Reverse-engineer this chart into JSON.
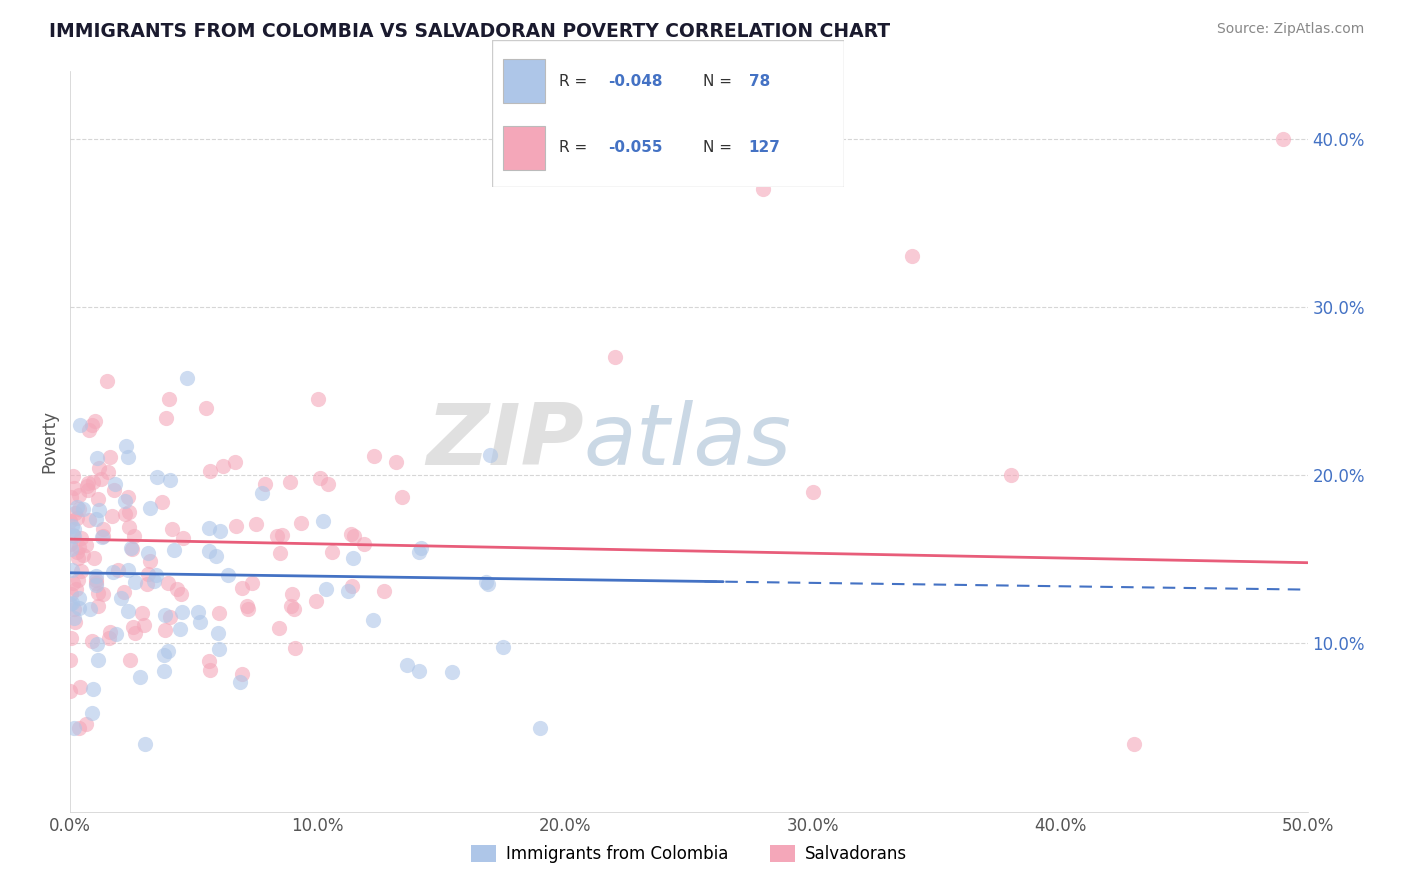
{
  "title": "IMMIGRANTS FROM COLOMBIA VS SALVADORAN POVERTY CORRELATION CHART",
  "source": "Source: ZipAtlas.com",
  "ylabel": "Poverty",
  "legend_label_1": "Immigrants from Colombia",
  "legend_label_2": "Salvadorans",
  "r1": -0.048,
  "n1": 78,
  "r2": -0.055,
  "n2": 127,
  "xlim": [
    0.0,
    0.5
  ],
  "ylim": [
    0.0,
    0.44
  ],
  "color_blue": "#aec6e8",
  "color_pink": "#f4a7b9",
  "line_blue": "#4472c4",
  "line_pink": "#e85d7a",
  "watermark_zip": "ZIP",
  "watermark_atlas": "atlas",
  "xtick_labels": [
    "0.0%",
    "10.0%",
    "20.0%",
    "30.0%",
    "40.0%",
    "50.0%"
  ],
  "xtick_vals": [
    0.0,
    0.1,
    0.2,
    0.3,
    0.4,
    0.5
  ],
  "ytick_labels": [
    "10.0%",
    "20.0%",
    "30.0%",
    "40.0%"
  ],
  "ytick_vals": [
    0.1,
    0.2,
    0.3,
    0.4
  ],
  "pink_line_start_y": 0.162,
  "pink_line_end_y": 0.148,
  "blue_line_start_y": 0.142,
  "blue_line_end_y": 0.132
}
